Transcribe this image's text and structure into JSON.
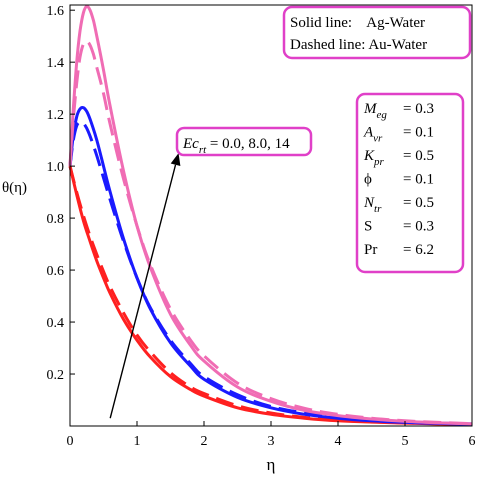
{
  "chart_data": {
    "type": "line",
    "xlabel": "η",
    "ylabel": "θ(η)",
    "xlim": [
      0,
      6
    ],
    "ylim": [
      0,
      1.62
    ],
    "xticks": [
      0,
      1,
      2,
      3,
      4,
      5,
      6
    ],
    "yticks": [
      0.2,
      0.4,
      0.6,
      0.8,
      1.0,
      1.2,
      1.4,
      1.6
    ],
    "xtick_labels": [
      "0",
      "1",
      "2",
      "3",
      "4",
      "5",
      "6"
    ],
    "ytick_labels": [
      "0.2",
      "0.4",
      "0.6",
      "0.8",
      "1.0",
      "1.2",
      "1.4",
      "1.6"
    ],
    "legend": [
      "Solid line:    Ag-Water",
      "Dashed line: Au-Water"
    ],
    "annotation": {
      "label_base": "Ec",
      "label_sub": "rt",
      "label_rest": " = 0.0, 8.0, 14",
      "arrow_from": [
        0.6,
        0.03
      ],
      "arrow_to": [
        1.62,
        1.05
      ]
    },
    "params": [
      {
        "base": "M",
        "sub": "eg",
        "value": "= 0.3"
      },
      {
        "base": "A",
        "sub": "vr",
        "value": "= 0.1"
      },
      {
        "base": "K",
        "sub": "pr",
        "value": "= 0.5"
      },
      {
        "base": "ϕ",
        "sub": "",
        "value": "= 0.1"
      },
      {
        "base": "N",
        "sub": "tr",
        "value": "= 0.5"
      },
      {
        "base": "S",
        "sub": "",
        "value": "= 0.3"
      },
      {
        "base": "Pr",
        "sub": "",
        "value": "= 6.2"
      }
    ],
    "series": [
      {
        "color": "#ff2020",
        "dash": false,
        "x": [
          0,
          0.1,
          0.2,
          0.3,
          0.4,
          0.5,
          0.6,
          0.8,
          1.0,
          1.2,
          1.5,
          1.8,
          2.0,
          2.5,
          3.0,
          3.5,
          4.0,
          4.5,
          5.0,
          5.5,
          6.0
        ],
        "y": [
          1.0,
          0.89,
          0.79,
          0.71,
          0.635,
          0.57,
          0.51,
          0.41,
          0.33,
          0.265,
          0.19,
          0.14,
          0.115,
          0.07,
          0.045,
          0.03,
          0.02,
          0.015,
          0.011,
          0.008,
          0.006
        ]
      },
      {
        "color": "#ff2020",
        "dash": true,
        "x": [
          0,
          0.1,
          0.2,
          0.3,
          0.4,
          0.5,
          0.6,
          0.8,
          1.0,
          1.2,
          1.5,
          1.8,
          2.0,
          2.5,
          3.0,
          3.5,
          4.0,
          4.5,
          5.0,
          5.5,
          6.0
        ],
        "y": [
          1.0,
          0.9,
          0.81,
          0.73,
          0.66,
          0.595,
          0.535,
          0.435,
          0.35,
          0.285,
          0.205,
          0.15,
          0.125,
          0.078,
          0.05,
          0.033,
          0.022,
          0.016,
          0.012,
          0.009,
          0.007
        ]
      },
      {
        "color": "#1a1aff",
        "dash": false,
        "x": [
          0,
          0.05,
          0.1,
          0.15,
          0.2,
          0.25,
          0.3,
          0.4,
          0.5,
          0.6,
          0.8,
          1.0,
          1.2,
          1.5,
          1.8,
          2.0,
          2.5,
          3.0,
          3.5,
          4.0,
          4.5,
          5.0,
          5.5,
          6.0
        ],
        "y": [
          1.0,
          1.12,
          1.19,
          1.22,
          1.225,
          1.21,
          1.18,
          1.1,
          1.0,
          0.9,
          0.72,
          0.57,
          0.45,
          0.32,
          0.23,
          0.18,
          0.11,
          0.07,
          0.045,
          0.03,
          0.02,
          0.014,
          0.01,
          0.007
        ]
      },
      {
        "color": "#1a1aff",
        "dash": true,
        "x": [
          0,
          0.05,
          0.1,
          0.15,
          0.2,
          0.25,
          0.3,
          0.4,
          0.5,
          0.6,
          0.8,
          1.0,
          1.2,
          1.5,
          1.8,
          2.0,
          2.5,
          3.0,
          3.5,
          4.0,
          4.5,
          5.0,
          5.5,
          6.0
        ],
        "y": [
          1.0,
          1.1,
          1.155,
          1.17,
          1.165,
          1.145,
          1.115,
          1.04,
          0.955,
          0.87,
          0.71,
          0.57,
          0.455,
          0.33,
          0.24,
          0.19,
          0.12,
          0.075,
          0.05,
          0.033,
          0.022,
          0.015,
          0.011,
          0.008
        ]
      },
      {
        "color": "#f06cb4",
        "dash": false,
        "x": [
          0,
          0.05,
          0.1,
          0.15,
          0.2,
          0.25,
          0.3,
          0.35,
          0.4,
          0.5,
          0.6,
          0.8,
          1.0,
          1.2,
          1.5,
          1.8,
          2.0,
          2.5,
          3.0,
          3.5,
          4.0,
          4.5,
          5.0,
          5.5,
          6.0
        ],
        "y": [
          1.0,
          1.22,
          1.4,
          1.52,
          1.59,
          1.615,
          1.6,
          1.56,
          1.5,
          1.37,
          1.23,
          0.98,
          0.77,
          0.61,
          0.43,
          0.31,
          0.25,
          0.15,
          0.095,
          0.06,
          0.04,
          0.027,
          0.018,
          0.012,
          0.008
        ]
      },
      {
        "color": "#f06cb4",
        "dash": true,
        "x": [
          0,
          0.05,
          0.1,
          0.15,
          0.2,
          0.25,
          0.3,
          0.35,
          0.4,
          0.5,
          0.6,
          0.8,
          1.0,
          1.2,
          1.5,
          1.8,
          2.0,
          2.5,
          3.0,
          3.5,
          4.0,
          4.5,
          5.0,
          5.5,
          6.0
        ],
        "y": [
          1.0,
          1.18,
          1.32,
          1.42,
          1.47,
          1.48,
          1.465,
          1.43,
          1.38,
          1.28,
          1.16,
          0.95,
          0.77,
          0.62,
          0.45,
          0.33,
          0.27,
          0.165,
          0.105,
          0.068,
          0.045,
          0.03,
          0.02,
          0.014,
          0.009
        ]
      }
    ]
  }
}
